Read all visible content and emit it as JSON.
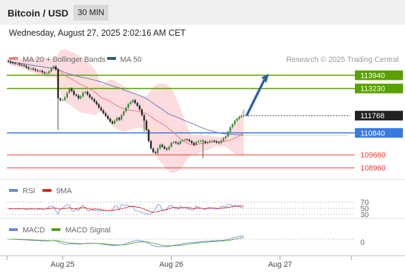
{
  "header": {
    "title": "Bitcoin / USD",
    "timeframe": "30 MIN"
  },
  "datetime": "Wednesday, August 27, 2025 2:02:16 AM CET",
  "legend": {
    "ma20_bb": "MA 20 + Bollinger Bands",
    "ma50": "MA 50",
    "credit": "Research © 2025 Trading Central"
  },
  "colors": {
    "resistance": "#5aa000",
    "pivot": "#3a7ae0",
    "support": "#ee3333",
    "last": "#222222",
    "bollinger_fill": "#fbd6d8",
    "ma20": "#ee7777",
    "ma50": "#6677bb",
    "up_candle": "#3a8a3a",
    "down_candle": "#222222",
    "arrow": "#2f5ea8"
  },
  "chart_data": [
    {
      "type": "candlestick",
      "title": "Bitcoin / USD",
      "timeframe": "30 MIN",
      "price_levels": [
        {
          "label": "113940",
          "value": 113940,
          "kind": "resistance"
        },
        {
          "label": "113230",
          "value": 113230,
          "kind": "resistance"
        },
        {
          "label": "111768",
          "value": 111768,
          "kind": "last"
        },
        {
          "label": "110840",
          "value": 110840,
          "kind": "pivot"
        },
        {
          "label": "109660",
          "value": 109660,
          "kind": "support"
        },
        {
          "label": "108960",
          "value": 108960,
          "kind": "support"
        }
      ],
      "x_ticks": [
        {
          "label": "Aug 25",
          "t": 24
        },
        {
          "label": "Aug 26",
          "t": 72
        },
        {
          "label": "Aug 27",
          "t": 120
        }
      ],
      "ylim": [
        108300,
        115400
      ],
      "xlim": [
        -13,
        143
      ],
      "close": [
        114680,
        114620,
        114600,
        114560,
        114560,
        114500,
        114480,
        114440,
        114360,
        114300,
        114300,
        114260,
        114200,
        114180,
        114180,
        114100,
        114050,
        114050,
        114150,
        114300,
        114420,
        114250,
        112700,
        112600,
        112620,
        112750,
        113000,
        113220,
        113100,
        112900,
        112850,
        112700,
        112800,
        113000,
        113050,
        112900,
        112750,
        112650,
        112520,
        112380,
        112200,
        112050,
        111900,
        111750,
        111600,
        111450,
        111350,
        111500,
        111650,
        111550,
        111800,
        112000,
        112200,
        112400,
        112500,
        112600,
        112450,
        112300,
        112100,
        111800,
        111500,
        111000,
        110400,
        110000,
        109800,
        109750,
        110000,
        110200,
        110100,
        110000,
        109950,
        110100,
        110300,
        110350,
        110300,
        110250,
        110400,
        110450,
        110480,
        110470,
        110400,
        110300,
        110200,
        110350,
        110400,
        110420,
        110380,
        110300,
        110350,
        110400,
        110420,
        110380,
        110330,
        110300,
        110420,
        110550,
        110650,
        110900,
        111150,
        111300,
        111500,
        111600,
        111700,
        111750,
        111768
      ],
      "open": [
        114720,
        114680,
        114620,
        114600,
        114560,
        114560,
        114500,
        114480,
        114440,
        114360,
        114300,
        114300,
        114260,
        114200,
        114180,
        114180,
        114100,
        114050,
        114050,
        114150,
        114300,
        114420,
        114250,
        112700,
        112600,
        112620,
        112750,
        113000,
        113220,
        113100,
        112900,
        112850,
        112700,
        112800,
        113000,
        113050,
        112900,
        112750,
        112650,
        112520,
        112380,
        112200,
        112050,
        111900,
        111750,
        111600,
        111450,
        111350,
        111500,
        111650,
        111550,
        111800,
        112000,
        112200,
        112400,
        112500,
        112600,
        112450,
        112300,
        112100,
        111800,
        111500,
        111000,
        110400,
        110000,
        109800,
        109750,
        110000,
        110200,
        110100,
        110000,
        109950,
        110100,
        110300,
        110350,
        110300,
        110250,
        110400,
        110450,
        110480,
        110470,
        110400,
        110300,
        110200,
        110350,
        110400,
        110420,
        110380,
        110300,
        110350,
        110400,
        110420,
        110380,
        110330,
        110300,
        110420,
        110550,
        110650,
        110900,
        111150,
        111300,
        111500,
        111600,
        111700,
        111750
      ],
      "wicks": [
        {
          "i": 22,
          "low": 111000
        },
        {
          "i": 60,
          "low": 110900
        },
        {
          "i": 86,
          "low": 109500
        },
        {
          "i": 104,
          "high": 112100
        }
      ],
      "projection": {
        "from": 111768,
        "to": 113940,
        "bars": 9
      }
    },
    {
      "type": "line",
      "title": "RSI",
      "series": [
        {
          "name": "RSI",
          "color": "#6688dd"
        },
        {
          "name": "9MA",
          "color": "#dd2222"
        }
      ],
      "levels": [
        {
          "label": "70",
          "value": 70
        },
        {
          "label": "50",
          "value": 50
        },
        {
          "label": "30",
          "value": 30
        }
      ]
    },
    {
      "type": "line",
      "title": "MACD",
      "series": [
        {
          "name": "MACD",
          "color": "#6688dd"
        },
        {
          "name": "MACD Signal",
          "color": "#55a022"
        }
      ],
      "levels": [
        {
          "label": "0",
          "value": 0
        }
      ]
    }
  ]
}
